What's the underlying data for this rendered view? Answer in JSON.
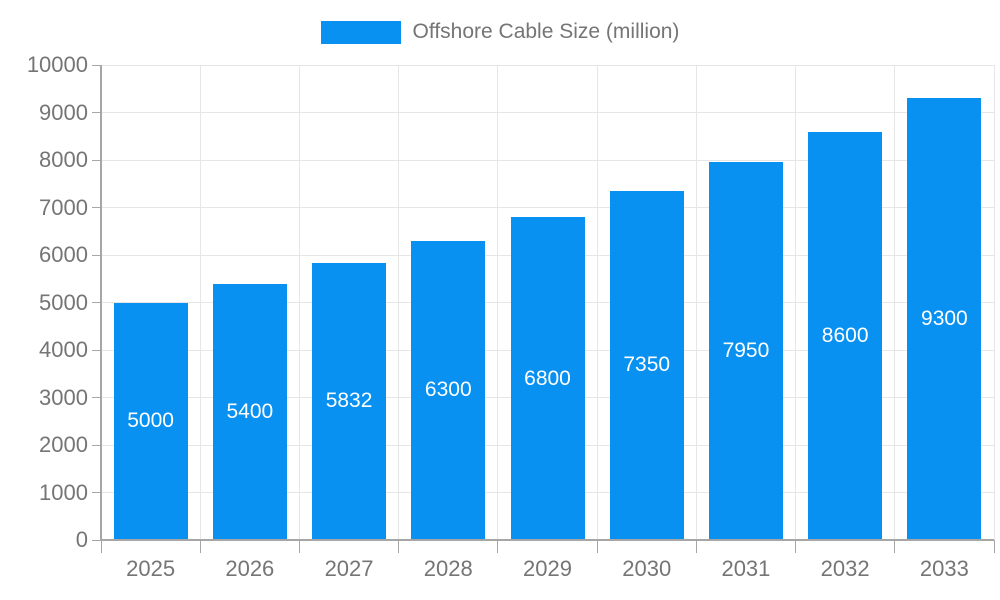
{
  "chart_data": {
    "type": "bar",
    "legend": {
      "label": "Offshore Cable Size (million)",
      "position": "top"
    },
    "categories": [
      "2025",
      "2026",
      "2027",
      "2028",
      "2029",
      "2030",
      "2031",
      "2032",
      "2033"
    ],
    "series": [
      {
        "name": "Offshore Cable Size (million)",
        "values": [
          5000,
          5400,
          5832,
          6300,
          6800,
          7350,
          7950,
          8600,
          9300
        ]
      }
    ],
    "xlabel": "",
    "ylabel": "",
    "ylim": [
      0,
      10000
    ],
    "y_ticks": [
      0,
      1000,
      2000,
      3000,
      4000,
      5000,
      6000,
      7000,
      8000,
      9000,
      10000
    ],
    "grid": "horizontal and vertical gridlines",
    "value_labels": {
      "visible": true,
      "position": "inside-center",
      "color": "#ffffff"
    }
  },
  "colors": {
    "bar": "#0991f2",
    "gridline": "#e6e6e6",
    "axis_line": "#a6a6a6",
    "axis_text": "#757575",
    "background": "#ffffff"
  }
}
